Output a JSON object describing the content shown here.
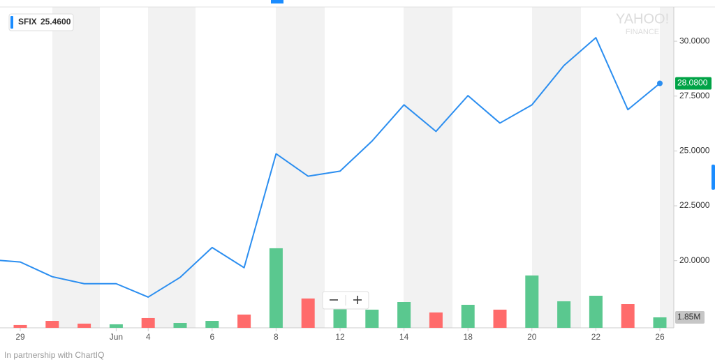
{
  "chart_data": {
    "type": "line",
    "symbol": "SFIX",
    "hover_price": {
      "value": 25.46,
      "label": "25.4600"
    },
    "watermark": [
      "YAHOO!",
      "FINANCE"
    ],
    "footer": "In partnership with ChartIQ",
    "categories": [
      null,
      "29",
      null,
      null,
      "Jun",
      "4",
      null,
      "6",
      null,
      "8",
      null,
      "12",
      null,
      "14",
      null,
      "18",
      null,
      "20",
      null,
      "22",
      null,
      "26"
    ],
    "series": [
      {
        "name": "SFIX",
        "color": "#2b8ef0",
        "values": [
          20.05,
          19.94,
          19.27,
          18.95,
          18.95,
          18.34,
          19.24,
          20.6,
          19.68,
          24.87,
          23.85,
          24.08,
          25.45,
          27.1,
          25.89,
          27.52,
          26.27,
          27.1,
          28.89,
          30.16,
          26.88,
          28.08
        ]
      }
    ],
    "last_price": {
      "value": 28.08,
      "label": "28.0800"
    },
    "last_price_color": "#00a346",
    "ylim": [
      16.94,
      31.56
    ],
    "yticks": [
      {
        "value": 20,
        "label": "20.0000"
      },
      {
        "value": 22.5,
        "label": "22.5000"
      },
      {
        "value": 25,
        "label": "25.0000"
      },
      {
        "value": 27.5,
        "label": "27.5000"
      },
      {
        "value": 30,
        "label": "30.0000"
      }
    ],
    "volume": {
      "values": [
        null,
        0.5,
        1.23,
        0.74,
        0.62,
        1.73,
        0.86,
        1.23,
        2.34,
        14.06,
        5.18,
        3.58,
        3.21,
        4.56,
        2.71,
        4.07,
        3.21,
        9.25,
        4.69,
        5.67,
        4.19,
        1.85
      ],
      "colors": [
        null,
        "#ff6b6b",
        "#ff6b6b",
        "#ff6b6b",
        "#5ac88f",
        "#ff6b6b",
        "#5ac88f",
        "#5ac88f",
        "#ff6b6b",
        "#5ac88f",
        "#ff6b6b",
        "#5ac88f",
        "#5ac88f",
        "#5ac88f",
        "#ff6b6b",
        "#5ac88f",
        "#ff6b6b",
        "#5ac88f",
        "#5ac88f",
        "#5ac88f",
        "#ff6b6b",
        "#5ac88f"
      ],
      "vlim": [
        0,
        56.7
      ],
      "last": {
        "value": 1.85,
        "label": "1.85M"
      }
    }
  }
}
